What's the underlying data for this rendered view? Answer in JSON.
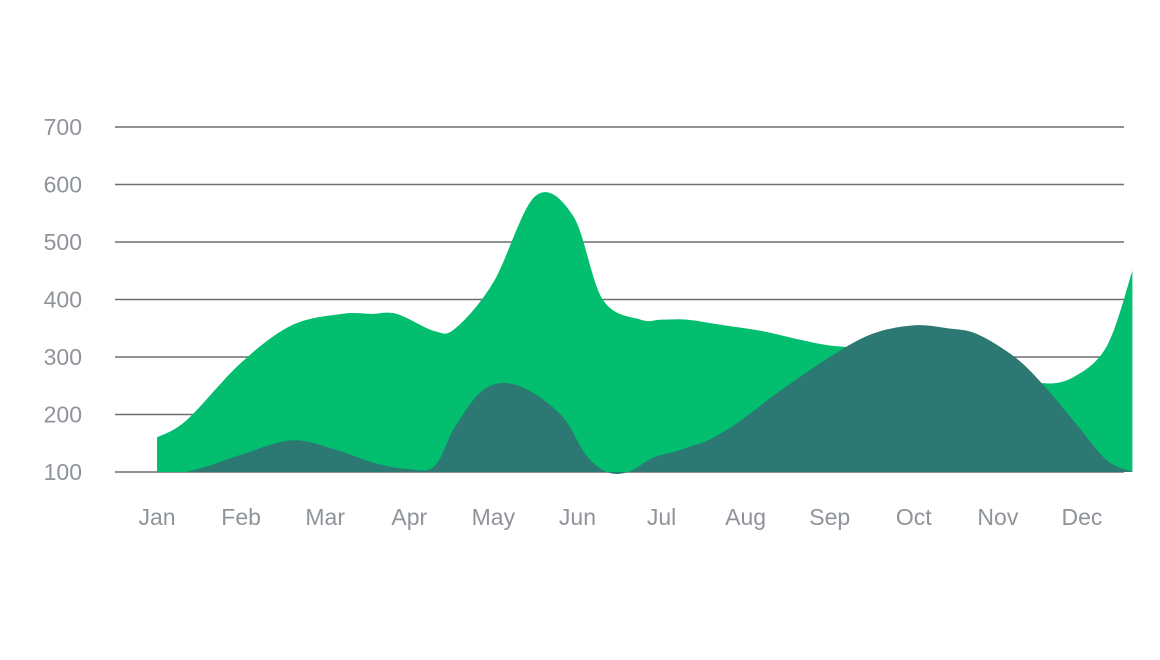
{
  "chart_data": {
    "type": "area",
    "title": "",
    "xlabel": "",
    "ylabel": "",
    "categories": [
      "Jan",
      "Feb",
      "Mar",
      "Apr",
      "May",
      "Jun",
      "Jul",
      "Aug",
      "Sep",
      "Oct",
      "Nov",
      "Dec"
    ],
    "y_ticks": [
      "100",
      "200",
      "300",
      "400",
      "500",
      "600",
      "700"
    ],
    "ylim": [
      100,
      700
    ],
    "grid": true,
    "legend": "none",
    "colors": {
      "green": "#02be6e",
      "teal": "#2c7873",
      "grid": "#6b6f73",
      "label": "#8f949a"
    },
    "series": [
      {
        "x": [
          0,
          0.35,
          1.0,
          1.6,
          2.2,
          2.55,
          2.85,
          3.3,
          3.55,
          4.0,
          4.5,
          4.95,
          5.3,
          5.75,
          6.0,
          6.3,
          6.75,
          7.2,
          7.65,
          8.0,
          8.45,
          8.85,
          9.2,
          9.55,
          10.0,
          10.5,
          10.9,
          11.3,
          11.6
        ],
        "values": [
          160,
          190,
          290,
          355,
          375,
          375,
          375,
          345,
          350,
          430,
          580,
          545,
          400,
          365,
          365,
          365,
          355,
          345,
          330,
          320,
          315,
          310,
          300,
          290,
          280,
          255,
          265,
          320,
          450
        ],
        "color": "#02be6e"
      },
      {
        "x": [
          0.35,
          0.6,
          1.0,
          1.6,
          2.1,
          2.6,
          3.0,
          3.3,
          3.55,
          3.9,
          4.3,
          4.8,
          5.1,
          5.35,
          5.6,
          5.9,
          6.15,
          6.35,
          6.55,
          6.9,
          7.4,
          8.0,
          8.5,
          9.0,
          9.4,
          9.75,
          10.2,
          10.55,
          10.95,
          11.3,
          11.6
        ],
        "values": [
          100,
          110,
          130,
          155,
          140,
          115,
          105,
          110,
          180,
          245,
          250,
          200,
          130,
          100,
          100,
          125,
          135,
          145,
          155,
          185,
          240,
          300,
          340,
          355,
          350,
          340,
          300,
          250,
          180,
          120,
          100
        ],
        "color": "#2c7873"
      }
    ]
  }
}
